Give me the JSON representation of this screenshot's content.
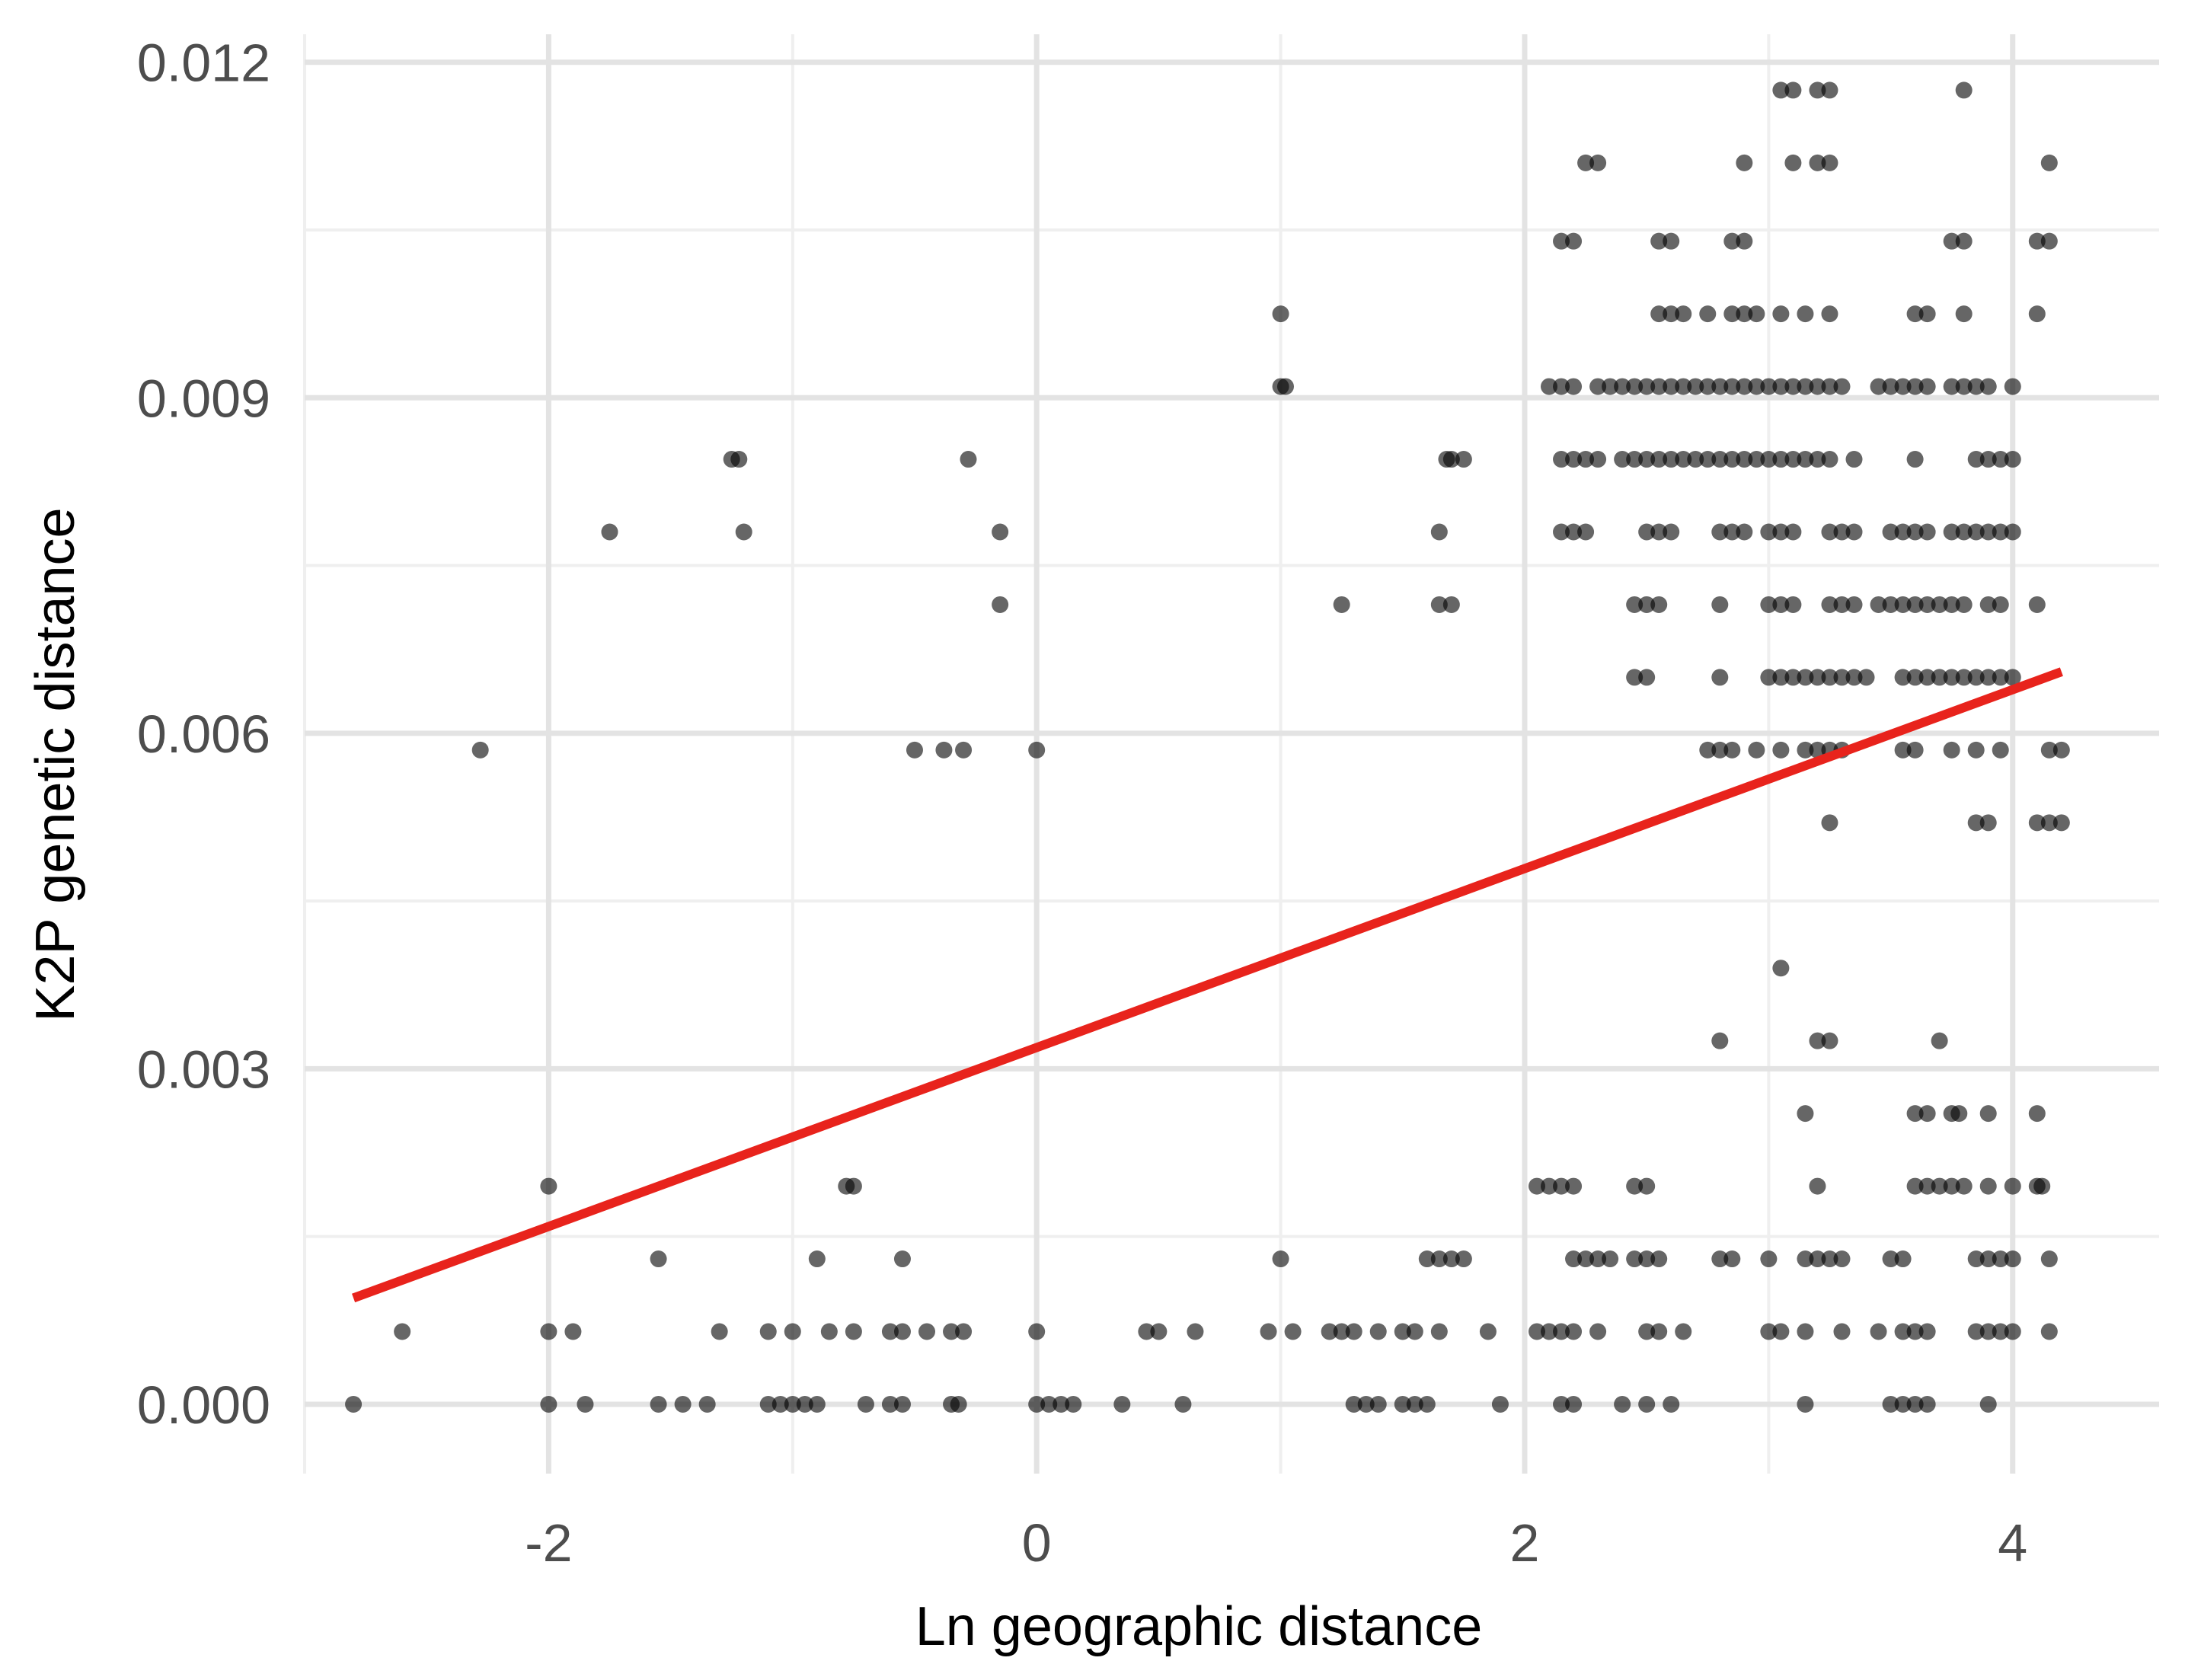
{
  "chart_data": {
    "type": "scatter",
    "title": "",
    "xlabel": "Ln geographic distance",
    "ylabel": "K2P genetic distance",
    "xlim": [
      -3,
      4.6
    ],
    "ylim": [
      -0.00062,
      0.01225
    ],
    "x_ticks": [
      -2,
      0,
      2,
      4
    ],
    "x_tick_labels": [
      "-2",
      "0",
      "2",
      "4"
    ],
    "y_ticks": [
      0.0,
      0.003,
      0.006,
      0.009,
      0.012
    ],
    "y_tick_labels": [
      "0.000",
      "0.003",
      "0.006",
      "0.009",
      "0.012"
    ],
    "grid": true,
    "legend": "none",
    "point_color": "#000000",
    "point_opacity": 0.6,
    "trend_color": "#e8231c",
    "trend_line": {
      "x": [
        -2.8,
        4.2
      ],
      "y": [
        0.00095,
        0.00655
      ]
    },
    "points": [
      [
        -2.8,
        0.0
      ],
      [
        -2.0,
        0.0
      ],
      [
        -1.85,
        0.0
      ],
      [
        -1.55,
        0.0
      ],
      [
        -1.45,
        0.0
      ],
      [
        -1.35,
        0.0
      ],
      [
        -1.1,
        0.0
      ],
      [
        -1.05,
        0.0
      ],
      [
        -1.0,
        0.0
      ],
      [
        -0.95,
        0.0
      ],
      [
        -0.9,
        0.0
      ],
      [
        -0.7,
        0.0
      ],
      [
        -0.6,
        0.0
      ],
      [
        -0.55,
        0.0
      ],
      [
        -0.35,
        0.0
      ],
      [
        -0.32,
        0.0
      ],
      [
        0.0,
        0.0
      ],
      [
        0.05,
        0.0
      ],
      [
        0.1,
        0.0
      ],
      [
        0.15,
        0.0
      ],
      [
        0.35,
        0.0
      ],
      [
        0.6,
        0.0
      ],
      [
        1.9,
        0.0
      ],
      [
        1.3,
        0.0
      ],
      [
        1.35,
        0.0
      ],
      [
        1.4,
        0.0
      ],
      [
        1.5,
        0.0
      ],
      [
        1.55,
        0.0
      ],
      [
        1.6,
        0.0
      ],
      [
        2.15,
        0.0
      ],
      [
        2.2,
        0.0
      ],
      [
        2.4,
        0.0
      ],
      [
        2.5,
        0.0
      ],
      [
        2.6,
        0.0
      ],
      [
        3.15,
        0.0
      ],
      [
        3.5,
        0.0
      ],
      [
        3.55,
        0.0
      ],
      [
        3.6,
        0.0
      ],
      [
        3.65,
        0.0
      ],
      [
        3.9,
        0.0
      ],
      [
        -2.6,
        0.00065
      ],
      [
        -2.0,
        0.00065
      ],
      [
        -1.9,
        0.00065
      ],
      [
        -1.3,
        0.00065
      ],
      [
        -1.1,
        0.00065
      ],
      [
        -1.0,
        0.00065
      ],
      [
        -0.85,
        0.00065
      ],
      [
        -0.75,
        0.00065
      ],
      [
        -0.6,
        0.00065
      ],
      [
        -0.55,
        0.00065
      ],
      [
        -0.45,
        0.00065
      ],
      [
        -0.35,
        0.00065
      ],
      [
        -0.3,
        0.00065
      ],
      [
        0.0,
        0.00065
      ],
      [
        0.45,
        0.00065
      ],
      [
        0.5,
        0.00065
      ],
      [
        0.65,
        0.00065
      ],
      [
        0.95,
        0.00065
      ],
      [
        1.05,
        0.00065
      ],
      [
        1.2,
        0.00065
      ],
      [
        1.25,
        0.00065
      ],
      [
        1.3,
        0.00065
      ],
      [
        1.4,
        0.00065
      ],
      [
        1.5,
        0.00065
      ],
      [
        1.55,
        0.00065
      ],
      [
        1.65,
        0.00065
      ],
      [
        1.85,
        0.00065
      ],
      [
        2.05,
        0.00065
      ],
      [
        2.1,
        0.00065
      ],
      [
        2.15,
        0.00065
      ],
      [
        2.2,
        0.00065
      ],
      [
        2.3,
        0.00065
      ],
      [
        2.5,
        0.00065
      ],
      [
        2.55,
        0.00065
      ],
      [
        2.65,
        0.00065
      ],
      [
        3.0,
        0.00065
      ],
      [
        3.05,
        0.00065
      ],
      [
        3.15,
        0.00065
      ],
      [
        3.3,
        0.00065
      ],
      [
        3.45,
        0.00065
      ],
      [
        3.55,
        0.00065
      ],
      [
        3.6,
        0.00065
      ],
      [
        3.65,
        0.00065
      ],
      [
        3.85,
        0.00065
      ],
      [
        3.9,
        0.00065
      ],
      [
        3.95,
        0.00065
      ],
      [
        4.0,
        0.00065
      ],
      [
        4.15,
        0.00065
      ],
      [
        -1.55,
        0.0013
      ],
      [
        -0.9,
        0.0013
      ],
      [
        -0.55,
        0.0013
      ],
      [
        1.0,
        0.0013
      ],
      [
        1.6,
        0.0013
      ],
      [
        1.65,
        0.0013
      ],
      [
        1.7,
        0.0013
      ],
      [
        1.75,
        0.0013
      ],
      [
        2.2,
        0.0013
      ],
      [
        2.25,
        0.0013
      ],
      [
        2.3,
        0.0013
      ],
      [
        2.35,
        0.0013
      ],
      [
        2.45,
        0.0013
      ],
      [
        2.5,
        0.0013
      ],
      [
        2.55,
        0.0013
      ],
      [
        2.8,
        0.0013
      ],
      [
        2.85,
        0.0013
      ],
      [
        3.0,
        0.0013
      ],
      [
        3.15,
        0.0013
      ],
      [
        3.2,
        0.0013
      ],
      [
        3.25,
        0.0013
      ],
      [
        3.3,
        0.0013
      ],
      [
        3.5,
        0.0013
      ],
      [
        3.55,
        0.0013
      ],
      [
        3.85,
        0.0013
      ],
      [
        3.9,
        0.0013
      ],
      [
        3.95,
        0.0013
      ],
      [
        4.0,
        0.0013
      ],
      [
        4.15,
        0.0013
      ],
      [
        -2.0,
        0.00195
      ],
      [
        -0.78,
        0.00195
      ],
      [
        -0.75,
        0.00195
      ],
      [
        2.05,
        0.00195
      ],
      [
        2.1,
        0.00195
      ],
      [
        2.15,
        0.00195
      ],
      [
        2.2,
        0.00195
      ],
      [
        2.45,
        0.00195
      ],
      [
        2.5,
        0.00195
      ],
      [
        3.2,
        0.00195
      ],
      [
        3.6,
        0.00195
      ],
      [
        3.65,
        0.00195
      ],
      [
        3.7,
        0.00195
      ],
      [
        3.75,
        0.00195
      ],
      [
        3.8,
        0.00195
      ],
      [
        3.9,
        0.00195
      ],
      [
        4.0,
        0.00195
      ],
      [
        4.1,
        0.00195
      ],
      [
        4.12,
        0.00195
      ],
      [
        3.15,
        0.0026
      ],
      [
        3.6,
        0.0026
      ],
      [
        3.65,
        0.0026
      ],
      [
        3.75,
        0.0026
      ],
      [
        3.78,
        0.0026
      ],
      [
        3.9,
        0.0026
      ],
      [
        4.1,
        0.0026
      ],
      [
        2.8,
        0.00325
      ],
      [
        3.2,
        0.00325
      ],
      [
        3.25,
        0.00325
      ],
      [
        3.7,
        0.00325
      ],
      [
        3.05,
        0.0039
      ],
      [
        3.25,
        0.0052
      ],
      [
        3.85,
        0.0052
      ],
      [
        3.9,
        0.0052
      ],
      [
        4.1,
        0.0052
      ],
      [
        4.15,
        0.0052
      ],
      [
        4.2,
        0.0052
      ],
      [
        -2.28,
        0.00585
      ],
      [
        -0.5,
        0.00585
      ],
      [
        -0.38,
        0.00585
      ],
      [
        -0.3,
        0.00585
      ],
      [
        0.0,
        0.00585
      ],
      [
        2.75,
        0.00585
      ],
      [
        2.8,
        0.00585
      ],
      [
        2.85,
        0.00585
      ],
      [
        2.95,
        0.00585
      ],
      [
        3.05,
        0.00585
      ],
      [
        3.15,
        0.00585
      ],
      [
        3.2,
        0.00585
      ],
      [
        3.25,
        0.00585
      ],
      [
        3.3,
        0.00585
      ],
      [
        3.55,
        0.00585
      ],
      [
        3.6,
        0.00585
      ],
      [
        3.75,
        0.00585
      ],
      [
        3.85,
        0.00585
      ],
      [
        3.95,
        0.00585
      ],
      [
        4.15,
        0.00585
      ],
      [
        4.2,
        0.00585
      ],
      [
        2.45,
        0.0065
      ],
      [
        2.5,
        0.0065
      ],
      [
        2.8,
        0.0065
      ],
      [
        3.0,
        0.0065
      ],
      [
        3.05,
        0.0065
      ],
      [
        3.1,
        0.0065
      ],
      [
        3.15,
        0.0065
      ],
      [
        3.2,
        0.0065
      ],
      [
        3.25,
        0.0065
      ],
      [
        3.3,
        0.0065
      ],
      [
        3.35,
        0.0065
      ],
      [
        3.4,
        0.0065
      ],
      [
        3.55,
        0.0065
      ],
      [
        3.6,
        0.0065
      ],
      [
        3.65,
        0.0065
      ],
      [
        3.7,
        0.0065
      ],
      [
        3.75,
        0.0065
      ],
      [
        3.8,
        0.0065
      ],
      [
        3.85,
        0.0065
      ],
      [
        3.9,
        0.0065
      ],
      [
        3.95,
        0.0065
      ],
      [
        4.0,
        0.0065
      ],
      [
        1.25,
        0.00715
      ],
      [
        1.65,
        0.00715
      ],
      [
        1.7,
        0.00715
      ],
      [
        2.45,
        0.00715
      ],
      [
        2.5,
        0.00715
      ],
      [
        2.55,
        0.00715
      ],
      [
        2.8,
        0.00715
      ],
      [
        3.0,
        0.00715
      ],
      [
        3.05,
        0.00715
      ],
      [
        3.1,
        0.00715
      ],
      [
        3.25,
        0.00715
      ],
      [
        3.3,
        0.00715
      ],
      [
        3.35,
        0.00715
      ],
      [
        3.45,
        0.00715
      ],
      [
        3.5,
        0.00715
      ],
      [
        3.55,
        0.00715
      ],
      [
        3.6,
        0.00715
      ],
      [
        3.65,
        0.00715
      ],
      [
        3.7,
        0.00715
      ],
      [
        3.75,
        0.00715
      ],
      [
        3.8,
        0.00715
      ],
      [
        3.9,
        0.00715
      ],
      [
        3.95,
        0.00715
      ],
      [
        4.1,
        0.00715
      ],
      [
        -0.15,
        0.00715
      ],
      [
        -1.75,
        0.0078
      ],
      [
        -1.2,
        0.0078
      ],
      [
        -0.15,
        0.0078
      ],
      [
        1.65,
        0.0078
      ],
      [
        2.15,
        0.0078
      ],
      [
        2.2,
        0.0078
      ],
      [
        2.25,
        0.0078
      ],
      [
        2.5,
        0.0078
      ],
      [
        2.55,
        0.0078
      ],
      [
        2.6,
        0.0078
      ],
      [
        2.8,
        0.0078
      ],
      [
        2.85,
        0.0078
      ],
      [
        2.9,
        0.0078
      ],
      [
        3.0,
        0.0078
      ],
      [
        3.05,
        0.0078
      ],
      [
        3.1,
        0.0078
      ],
      [
        3.25,
        0.0078
      ],
      [
        3.3,
        0.0078
      ],
      [
        3.35,
        0.0078
      ],
      [
        3.5,
        0.0078
      ],
      [
        3.55,
        0.0078
      ],
      [
        3.6,
        0.0078
      ],
      [
        3.65,
        0.0078
      ],
      [
        3.75,
        0.0078
      ],
      [
        3.8,
        0.0078
      ],
      [
        3.85,
        0.0078
      ],
      [
        3.9,
        0.0078
      ],
      [
        3.95,
        0.0078
      ],
      [
        4.0,
        0.0078
      ],
      [
        -1.25,
        0.00845
      ],
      [
        -1.22,
        0.00845
      ],
      [
        -0.28,
        0.00845
      ],
      [
        1.68,
        0.00845
      ],
      [
        1.7,
        0.00845
      ],
      [
        1.75,
        0.00845
      ],
      [
        2.15,
        0.00845
      ],
      [
        2.2,
        0.00845
      ],
      [
        2.25,
        0.00845
      ],
      [
        2.3,
        0.00845
      ],
      [
        2.4,
        0.00845
      ],
      [
        2.45,
        0.00845
      ],
      [
        2.5,
        0.00845
      ],
      [
        2.55,
        0.00845
      ],
      [
        2.6,
        0.00845
      ],
      [
        2.65,
        0.00845
      ],
      [
        2.7,
        0.00845
      ],
      [
        2.75,
        0.00845
      ],
      [
        2.8,
        0.00845
      ],
      [
        2.85,
        0.00845
      ],
      [
        2.9,
        0.00845
      ],
      [
        2.95,
        0.00845
      ],
      [
        3.0,
        0.00845
      ],
      [
        3.05,
        0.00845
      ],
      [
        3.1,
        0.00845
      ],
      [
        3.15,
        0.00845
      ],
      [
        3.2,
        0.00845
      ],
      [
        3.25,
        0.00845
      ],
      [
        3.35,
        0.00845
      ],
      [
        3.6,
        0.00845
      ],
      [
        3.85,
        0.00845
      ],
      [
        3.9,
        0.00845
      ],
      [
        3.95,
        0.00845
      ],
      [
        4.0,
        0.00845
      ],
      [
        1.0,
        0.0091
      ],
      [
        1.02,
        0.0091
      ],
      [
        2.1,
        0.0091
      ],
      [
        2.15,
        0.0091
      ],
      [
        2.2,
        0.0091
      ],
      [
        2.3,
        0.0091
      ],
      [
        2.35,
        0.0091
      ],
      [
        2.4,
        0.0091
      ],
      [
        2.45,
        0.0091
      ],
      [
        2.5,
        0.0091
      ],
      [
        2.55,
        0.0091
      ],
      [
        2.6,
        0.0091
      ],
      [
        2.65,
        0.0091
      ],
      [
        2.7,
        0.0091
      ],
      [
        2.75,
        0.0091
      ],
      [
        2.8,
        0.0091
      ],
      [
        2.85,
        0.0091
      ],
      [
        2.9,
        0.0091
      ],
      [
        2.95,
        0.0091
      ],
      [
        3.0,
        0.0091
      ],
      [
        3.05,
        0.0091
      ],
      [
        3.1,
        0.0091
      ],
      [
        3.15,
        0.0091
      ],
      [
        3.2,
        0.0091
      ],
      [
        3.25,
        0.0091
      ],
      [
        3.3,
        0.0091
      ],
      [
        3.45,
        0.0091
      ],
      [
        3.5,
        0.0091
      ],
      [
        3.55,
        0.0091
      ],
      [
        3.6,
        0.0091
      ],
      [
        3.65,
        0.0091
      ],
      [
        3.75,
        0.0091
      ],
      [
        3.8,
        0.0091
      ],
      [
        3.85,
        0.0091
      ],
      [
        3.9,
        0.0091
      ],
      [
        4.0,
        0.0091
      ],
      [
        1.0,
        0.00975
      ],
      [
        2.55,
        0.00975
      ],
      [
        2.6,
        0.00975
      ],
      [
        2.65,
        0.00975
      ],
      [
        2.75,
        0.00975
      ],
      [
        2.85,
        0.00975
      ],
      [
        2.9,
        0.00975
      ],
      [
        2.95,
        0.00975
      ],
      [
        3.05,
        0.00975
      ],
      [
        3.15,
        0.00975
      ],
      [
        3.25,
        0.00975
      ],
      [
        3.6,
        0.00975
      ],
      [
        3.65,
        0.00975
      ],
      [
        3.8,
        0.00975
      ],
      [
        4.1,
        0.00975
      ],
      [
        2.15,
        0.0104
      ],
      [
        2.2,
        0.0104
      ],
      [
        2.55,
        0.0104
      ],
      [
        2.6,
        0.0104
      ],
      [
        2.85,
        0.0104
      ],
      [
        2.9,
        0.0104
      ],
      [
        3.75,
        0.0104
      ],
      [
        3.8,
        0.0104
      ],
      [
        4.1,
        0.0104
      ],
      [
        4.15,
        0.0104
      ],
      [
        2.25,
        0.0111
      ],
      [
        2.3,
        0.0111
      ],
      [
        2.9,
        0.0111
      ],
      [
        3.1,
        0.0111
      ],
      [
        3.2,
        0.0111
      ],
      [
        3.25,
        0.0111
      ],
      [
        4.15,
        0.0111
      ],
      [
        3.05,
        0.01175
      ],
      [
        3.1,
        0.01175
      ],
      [
        3.2,
        0.01175
      ],
      [
        3.25,
        0.01175
      ],
      [
        3.8,
        0.01175
      ]
    ]
  }
}
